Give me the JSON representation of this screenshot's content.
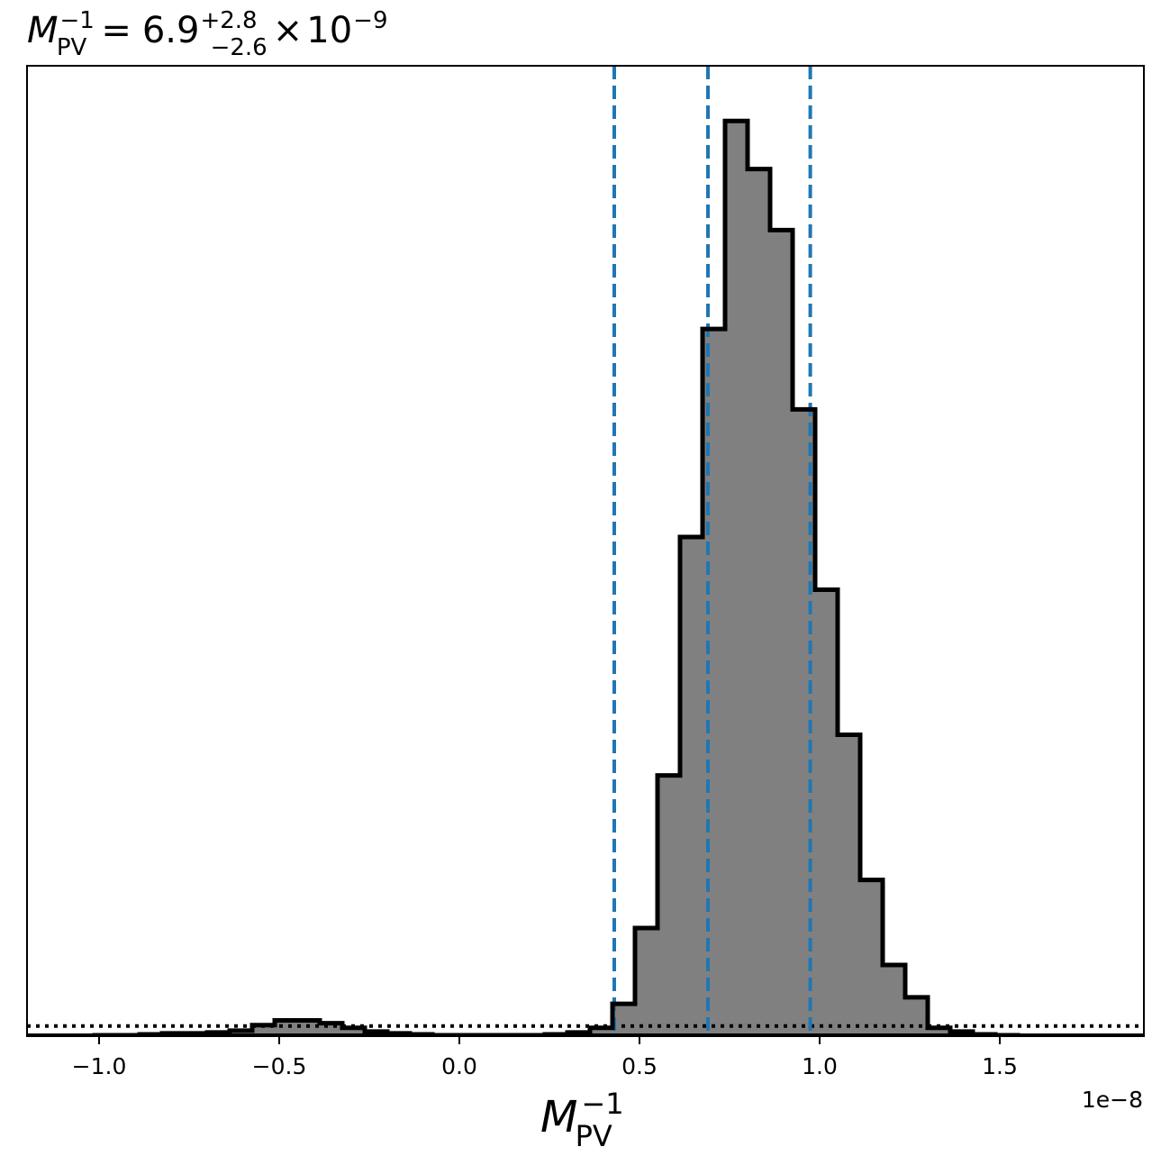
{
  "chart_data": {
    "type": "histogram",
    "title": {
      "symbol": "M",
      "subscript": "PV",
      "superscript": "−1",
      "equals": "=",
      "median": "6.9",
      "err_plus": "+2.8",
      "err_minus": "−2.6",
      "times": "×",
      "mult_base": "10",
      "mult_exp": "−9"
    },
    "xlabel": {
      "symbol": "M",
      "subscript": "PV",
      "superscript": "−1"
    },
    "x_offset_label": "1e−8",
    "xlim": [
      -1.2,
      1.9
    ],
    "ylim": [
      0,
      1.0
    ],
    "x_ticks": [
      -1.0,
      -0.5,
      0.0,
      0.5,
      1.0,
      1.5
    ],
    "x_tick_labels": [
      "−1.0",
      "−0.5",
      "0.0",
      "0.5",
      "1.0",
      "1.5"
    ],
    "bins": {
      "start": -1.2,
      "width": 0.0625,
      "heights": [
        0,
        0,
        0,
        0.001,
        0.001,
        0.002,
        0.003,
        0.003,
        0.004,
        0.006,
        0.012,
        0.017,
        0.017,
        0.014,
        0.009,
        0.005,
        0.003,
        0.002,
        0.001,
        0.001,
        0.001,
        0.001,
        0.001,
        0.002,
        0.004,
        0.009,
        0.035,
        0.117,
        0.282,
        0.54,
        0.765,
        0.99,
        0.938,
        0.872,
        0.678,
        0.483,
        0.326,
        0.169,
        0.077,
        0.042,
        0.009,
        0.005,
        0.002,
        0.001,
        0.0,
        0.0,
        0.0,
        0.0,
        0.0,
        0.0
      ]
    },
    "hist_fill_color": "#808080",
    "hist_edge_color": "#000000",
    "quantile_lines": [
      0.43,
      0.69,
      0.974
    ],
    "quantile_line_color": "#1f77b4",
    "baseline_dotted": 0.011
  }
}
